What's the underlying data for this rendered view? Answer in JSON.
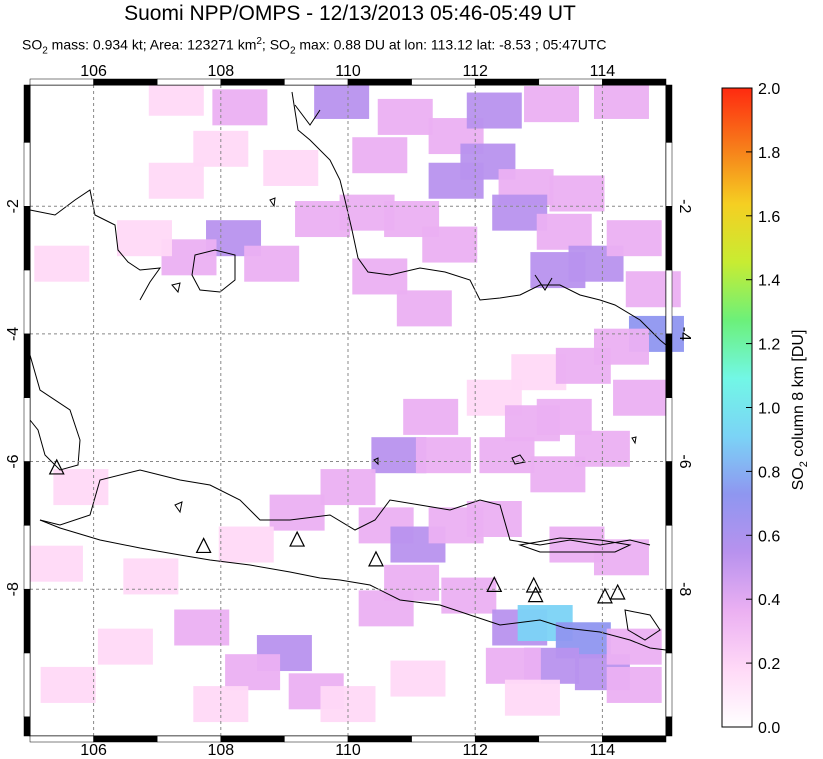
{
  "header": {
    "title": "Suomi NPP/OMPS - 12/13/2013 05:46-05:49 UT",
    "subtitle_parts": {
      "so2": "SO",
      "sub2": "2",
      "mass": " mass: 0.934 kt; Area: 123271 km",
      "sup2": "2",
      "mid": "; SO",
      "sub2b": "2",
      "rest": " max: 0.88 DU at lon: 113.12 lat: -8.53 ; 05:47UTC"
    }
  },
  "chart_data": {
    "type": "heatmap",
    "title": "Suomi NPP/OMPS - 12/13/2013 05:46-05:49 UT",
    "xlim": [
      105,
      115
    ],
    "ylim": [
      -10.3,
      -0.1
    ],
    "x_ticks": [
      106,
      108,
      110,
      112,
      114
    ],
    "y_ticks": [
      -2,
      -4,
      -6,
      -8
    ],
    "grid": true,
    "colorbar": {
      "label": "SO2 column 8 km [DU]",
      "range": [
        0.0,
        2.0
      ],
      "ticks": [
        "0.0",
        "0.2",
        "0.4",
        "0.6",
        "0.8",
        "1.0",
        "1.2",
        "1.4",
        "1.6",
        "1.8",
        "2.0"
      ],
      "colors": [
        "#ffffff",
        "#ffd9f7",
        "#ebb0f2",
        "#b892ee",
        "#8f96f0",
        "#7bd3f6",
        "#72f7e6",
        "#6cf07a",
        "#c8ec32",
        "#f5cf22",
        "#f77b1a",
        "#ff2a10"
      ]
    },
    "max_value": {
      "value": 0.88,
      "lon": 113.12,
      "lat": -8.53
    },
    "volcanoes": [
      {
        "lon": 105.42,
        "lat": -6.1
      },
      {
        "lon": 107.73,
        "lat": -7.33
      },
      {
        "lon": 109.2,
        "lat": -7.23
      },
      {
        "lon": 110.44,
        "lat": -7.54
      },
      {
        "lon": 112.3,
        "lat": -7.94
      },
      {
        "lon": 112.92,
        "lat": -7.95
      },
      {
        "lon": 112.95,
        "lat": -8.1
      },
      {
        "lon": 114.04,
        "lat": -8.12
      },
      {
        "lon": 114.24,
        "lat": -8.06
      }
    ],
    "pixels": [
      {
        "lon": 107.3,
        "lat": -0.3,
        "v": 0.25
      },
      {
        "lon": 108.3,
        "lat": -0.45,
        "v": 0.3
      },
      {
        "lon": 109.9,
        "lat": -0.35,
        "v": 0.55
      },
      {
        "lon": 110.9,
        "lat": -0.6,
        "v": 0.4
      },
      {
        "lon": 111.7,
        "lat": -0.9,
        "v": 0.45
      },
      {
        "lon": 112.3,
        "lat": -0.5,
        "v": 0.5
      },
      {
        "lon": 113.2,
        "lat": -0.4,
        "v": 0.3
      },
      {
        "lon": 114.3,
        "lat": -0.35,
        "v": 0.35
      },
      {
        "lon": 111.7,
        "lat": -1.6,
        "v": 0.55
      },
      {
        "lon": 112.2,
        "lat": -1.3,
        "v": 0.6
      },
      {
        "lon": 112.8,
        "lat": -1.7,
        "v": 0.45
      },
      {
        "lon": 113.6,
        "lat": -1.8,
        "v": 0.35
      },
      {
        "lon": 108.0,
        "lat": -1.1,
        "v": 0.22
      },
      {
        "lon": 107.3,
        "lat": -1.6,
        "v": 0.2
      },
      {
        "lon": 109.1,
        "lat": -1.4,
        "v": 0.25
      },
      {
        "lon": 110.5,
        "lat": -1.2,
        "v": 0.3
      },
      {
        "lon": 108.2,
        "lat": -2.5,
        "v": 0.55
      },
      {
        "lon": 107.5,
        "lat": -2.8,
        "v": 0.3
      },
      {
        "lon": 108.8,
        "lat": -2.9,
        "v": 0.3
      },
      {
        "lon": 109.6,
        "lat": -2.2,
        "v": 0.3
      },
      {
        "lon": 110.3,
        "lat": -2.1,
        "v": 0.45
      },
      {
        "lon": 111.0,
        "lat": -2.2,
        "v": 0.35
      },
      {
        "lon": 111.6,
        "lat": -2.6,
        "v": 0.3
      },
      {
        "lon": 112.7,
        "lat": -2.1,
        "v": 0.55
      },
      {
        "lon": 113.4,
        "lat": -2.4,
        "v": 0.4
      },
      {
        "lon": 113.9,
        "lat": -2.9,
        "v": 0.6
      },
      {
        "lon": 113.3,
        "lat": -3.0,
        "v": 0.55
      },
      {
        "lon": 114.5,
        "lat": -2.5,
        "v": 0.35
      },
      {
        "lon": 114.8,
        "lat": -3.3,
        "v": 0.35
      },
      {
        "lon": 114.85,
        "lat": -4.0,
        "v": 0.75
      },
      {
        "lon": 110.5,
        "lat": -3.1,
        "v": 0.3
      },
      {
        "lon": 111.2,
        "lat": -3.6,
        "v": 0.4
      },
      {
        "lon": 106.8,
        "lat": -2.5,
        "v": 0.15
      },
      {
        "lon": 105.5,
        "lat": -2.9,
        "v": 0.15
      },
      {
        "lon": 113.0,
        "lat": -4.6,
        "v": 0.2
      },
      {
        "lon": 113.7,
        "lat": -4.5,
        "v": 0.3
      },
      {
        "lon": 114.3,
        "lat": -4.2,
        "v": 0.35
      },
      {
        "lon": 114.6,
        "lat": -5.0,
        "v": 0.4
      },
      {
        "lon": 112.3,
        "lat": -5.0,
        "v": 0.25
      },
      {
        "lon": 111.3,
        "lat": -5.3,
        "v": 0.3
      },
      {
        "lon": 112.9,
        "lat": -5.4,
        "v": 0.35
      },
      {
        "lon": 113.4,
        "lat": -5.3,
        "v": 0.35
      },
      {
        "lon": 110.8,
        "lat": -5.9,
        "v": 0.55
      },
      {
        "lon": 111.5,
        "lat": -5.9,
        "v": 0.45
      },
      {
        "lon": 112.5,
        "lat": -5.9,
        "v": 0.4
      },
      {
        "lon": 113.3,
        "lat": -6.2,
        "v": 0.4
      },
      {
        "lon": 114.0,
        "lat": -5.8,
        "v": 0.35
      },
      {
        "lon": 110.0,
        "lat": -6.4,
        "v": 0.35
      },
      {
        "lon": 109.2,
        "lat": -6.8,
        "v": 0.4
      },
      {
        "lon": 110.6,
        "lat": -7.0,
        "v": 0.45
      },
      {
        "lon": 111.1,
        "lat": -7.3,
        "v": 0.55
      },
      {
        "lon": 111.7,
        "lat": -7.0,
        "v": 0.45
      },
      {
        "lon": 112.3,
        "lat": -6.9,
        "v": 0.4
      },
      {
        "lon": 113.6,
        "lat": -7.3,
        "v": 0.45
      },
      {
        "lon": 114.3,
        "lat": -7.5,
        "v": 0.4
      },
      {
        "lon": 111.0,
        "lat": -7.9,
        "v": 0.35
      },
      {
        "lon": 110.6,
        "lat": -8.3,
        "v": 0.45
      },
      {
        "lon": 111.9,
        "lat": -8.1,
        "v": 0.3
      },
      {
        "lon": 112.7,
        "lat": -8.6,
        "v": 0.55
      },
      {
        "lon": 113.1,
        "lat": -8.53,
        "v": 0.88
      },
      {
        "lon": 113.7,
        "lat": -8.8,
        "v": 0.65
      },
      {
        "lon": 114.0,
        "lat": -9.3,
        "v": 0.6
      },
      {
        "lon": 113.2,
        "lat": -9.2,
        "v": 0.55
      },
      {
        "lon": 112.6,
        "lat": -9.2,
        "v": 0.35
      },
      {
        "lon": 114.5,
        "lat": -8.9,
        "v": 0.35
      },
      {
        "lon": 114.5,
        "lat": -9.5,
        "v": 0.3
      },
      {
        "lon": 112.9,
        "lat": -9.7,
        "v": 0.25
      },
      {
        "lon": 109.0,
        "lat": -9.0,
        "v": 0.55
      },
      {
        "lon": 108.5,
        "lat": -9.3,
        "v": 0.4
      },
      {
        "lon": 109.5,
        "lat": -9.6,
        "v": 0.3
      },
      {
        "lon": 107.7,
        "lat": -8.6,
        "v": 0.3
      },
      {
        "lon": 108.0,
        "lat": -9.8,
        "v": 0.25
      },
      {
        "lon": 106.5,
        "lat": -8.9,
        "v": 0.15
      },
      {
        "lon": 105.6,
        "lat": -9.5,
        "v": 0.15
      },
      {
        "lon": 106.9,
        "lat": -7.8,
        "v": 0.15
      },
      {
        "lon": 108.4,
        "lat": -7.3,
        "v": 0.2
      },
      {
        "lon": 105.4,
        "lat": -7.6,
        "v": 0.15
      },
      {
        "lon": 105.8,
        "lat": -6.4,
        "v": 0.15
      },
      {
        "lon": 110.0,
        "lat": -9.8,
        "v": 0.15
      },
      {
        "lon": 111.1,
        "lat": -9.4,
        "v": 0.2
      }
    ]
  }
}
